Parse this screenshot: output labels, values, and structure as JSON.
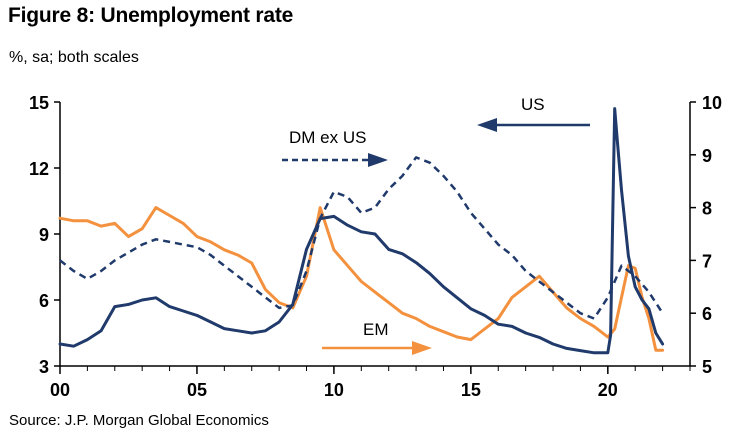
{
  "header": {
    "title": "Figure 8: Unemployment rate",
    "subtitle": "%, sa; both scales"
  },
  "footer": {
    "source": "Source: J.P. Morgan Global Economics"
  },
  "colors": {
    "us": "#1f3a6b",
    "dm": "#1f3a6b",
    "em": "#f4913e",
    "axis": "#000000"
  },
  "chart_data": {
    "type": "line",
    "title": "Figure 8: Unemployment rate",
    "subtitle": "%, sa; both scales",
    "x_range": [
      2000,
      2023
    ],
    "x_ticks": [
      {
        "v": 2000,
        "label": "00"
      },
      {
        "v": 2005,
        "label": "05"
      },
      {
        "v": 2010,
        "label": "10"
      },
      {
        "v": 2015,
        "label": "15"
      },
      {
        "v": 2020,
        "label": "20"
      }
    ],
    "y_left": {
      "range": [
        3,
        15
      ],
      "ticks": [
        3,
        6,
        9,
        12,
        15
      ],
      "series": [
        "US"
      ]
    },
    "y_right": {
      "range": [
        5,
        10
      ],
      "ticks": [
        5,
        6,
        7,
        8,
        9,
        10
      ],
      "series": [
        "DM ex US",
        "EM"
      ]
    },
    "annotations": {
      "us": "US",
      "dm": "DM ex US",
      "em": "EM"
    },
    "series": [
      {
        "name": "US",
        "axis": "left",
        "style": "solid",
        "x": [
          2000,
          2000.5,
          2001,
          2001.5,
          2002,
          2002.5,
          2003,
          2003.5,
          2004,
          2004.5,
          2005,
          2005.5,
          2006,
          2006.5,
          2007,
          2007.5,
          2008,
          2008.5,
          2009,
          2009.5,
          2010,
          2010.5,
          2011,
          2011.5,
          2012,
          2012.5,
          2013,
          2013.5,
          2014,
          2014.5,
          2015,
          2015.5,
          2016,
          2016.5,
          2017,
          2017.5,
          2018,
          2018.5,
          2019,
          2019.5,
          2020,
          2020.1,
          2020.25,
          2020.35,
          2020.5,
          2020.75,
          2021,
          2021.25,
          2021.5,
          2021.75,
          2022
        ],
        "y": [
          4.0,
          3.9,
          4.2,
          4.6,
          5.7,
          5.8,
          6.0,
          6.1,
          5.7,
          5.5,
          5.3,
          5.0,
          4.7,
          4.6,
          4.5,
          4.6,
          5.0,
          5.8,
          8.3,
          9.7,
          9.8,
          9.4,
          9.1,
          9.0,
          8.3,
          8.1,
          7.7,
          7.2,
          6.6,
          6.1,
          5.6,
          5.3,
          4.9,
          4.8,
          4.5,
          4.3,
          4.0,
          3.8,
          3.7,
          3.6,
          3.6,
          4.4,
          14.7,
          13.2,
          11.0,
          8.0,
          6.6,
          6.0,
          5.6,
          4.5,
          4.0
        ]
      },
      {
        "name": "DM ex US",
        "axis": "right",
        "style": "dashed",
        "x": [
          2000,
          2000.5,
          2001,
          2001.5,
          2002,
          2002.5,
          2003,
          2003.5,
          2004,
          2004.5,
          2005,
          2005.5,
          2006,
          2006.5,
          2007,
          2007.5,
          2008,
          2008.5,
          2009,
          2009.5,
          2010,
          2010.5,
          2011,
          2011.5,
          2012,
          2012.5,
          2013,
          2013.5,
          2014,
          2014.5,
          2015,
          2015.5,
          2016,
          2016.5,
          2017,
          2017.5,
          2018,
          2018.5,
          2019,
          2019.5,
          2020,
          2020.5,
          2021,
          2021.5,
          2022
        ],
        "y": [
          7.0,
          6.8,
          6.65,
          6.8,
          7.0,
          7.15,
          7.3,
          7.4,
          7.35,
          7.3,
          7.25,
          7.1,
          6.9,
          6.7,
          6.5,
          6.3,
          6.1,
          6.15,
          6.8,
          7.8,
          8.3,
          8.2,
          7.9,
          8.0,
          8.35,
          8.6,
          8.95,
          8.85,
          8.6,
          8.3,
          7.9,
          7.6,
          7.3,
          7.1,
          6.8,
          6.6,
          6.4,
          6.2,
          6.0,
          5.9,
          6.3,
          6.9,
          6.7,
          6.4,
          6.0
        ]
      },
      {
        "name": "EM",
        "axis": "right",
        "style": "solid",
        "x": [
          2000,
          2000.5,
          2001,
          2001.5,
          2002,
          2002.5,
          2003,
          2003.5,
          2004,
          2004.5,
          2005,
          2005.5,
          2006,
          2006.5,
          2007,
          2007.5,
          2008,
          2008.5,
          2009,
          2009.5,
          2010,
          2010.5,
          2011,
          2011.5,
          2012,
          2012.5,
          2013,
          2013.5,
          2014,
          2014.5,
          2015,
          2015.5,
          2016,
          2016.5,
          2017,
          2017.5,
          2018,
          2018.5,
          2019,
          2019.5,
          2020,
          2020.25,
          2020.5,
          2020.75,
          2021,
          2021.25,
          2021.5,
          2021.75,
          2022
        ],
        "y": [
          7.8,
          7.75,
          7.75,
          7.65,
          7.7,
          7.45,
          7.6,
          8.0,
          7.85,
          7.7,
          7.45,
          7.35,
          7.2,
          7.1,
          6.95,
          6.45,
          6.2,
          6.1,
          6.7,
          8.0,
          7.2,
          6.9,
          6.6,
          6.4,
          6.2,
          6.0,
          5.9,
          5.75,
          5.65,
          5.55,
          5.5,
          5.7,
          5.9,
          6.3,
          6.5,
          6.7,
          6.4,
          6.1,
          5.9,
          5.75,
          5.55,
          5.7,
          6.3,
          6.9,
          6.85,
          6.3,
          5.9,
          5.3,
          5.3
        ]
      }
    ]
  }
}
